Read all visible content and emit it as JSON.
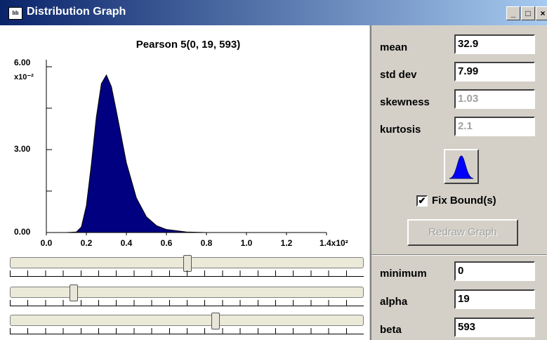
{
  "window": {
    "title": "Distribution Graph"
  },
  "chart_data": {
    "type": "area",
    "title": "Pearson 5(0, 19, 593)",
    "x": [
      0.1,
      0.15,
      0.175,
      0.2,
      0.225,
      0.25,
      0.275,
      0.3,
      0.325,
      0.35,
      0.4,
      0.45,
      0.5,
      0.55,
      0.6,
      0.7,
      0.8
    ],
    "values": [
      0,
      0.02,
      0.2,
      0.97,
      2.47,
      4.18,
      5.39,
      5.7,
      5.28,
      4.39,
      2.52,
      1.25,
      0.57,
      0.25,
      0.11,
      0.02,
      0
    ],
    "color": "#000080",
    "xlim": [
      0,
      1.4
    ],
    "xticks": [
      {
        "value": 0,
        "label": "0.0"
      },
      {
        "value": 0.2,
        "label": "0.2"
      },
      {
        "value": 0.4,
        "label": "0.4"
      },
      {
        "value": 0.6,
        "label": "0.6"
      },
      {
        "value": 0.8,
        "label": "0.8"
      },
      {
        "value": 1.0,
        "label": "1.0"
      },
      {
        "value": 1.2,
        "label": "1.2"
      },
      {
        "value": 1.4,
        "label": "1.4x10²"
      }
    ],
    "ylim": [
      0,
      6
    ],
    "yticks": [
      {
        "value": 0,
        "label": "0.00"
      },
      {
        "value": 3,
        "label": "3.00"
      },
      {
        "value": 6,
        "label": "6.00"
      }
    ],
    "yminor": [
      1.5,
      4.5
    ],
    "y_multiplier": "x10⁻²"
  },
  "stats": [
    {
      "label": "mean",
      "value": 32.9,
      "enabled": true
    },
    {
      "label": "std dev",
      "value": 7.99,
      "enabled": true
    },
    {
      "label": "skewness",
      "value": 1.03,
      "enabled": false
    },
    {
      "label": "kurtosis",
      "value": 2.1,
      "enabled": false
    }
  ],
  "fix_bounds": {
    "label": "Fix Bound(s)",
    "checked": true
  },
  "redraw_button": {
    "label": "Redraw Graph",
    "enabled": false
  },
  "parameters": [
    {
      "label": "minimum",
      "value": 0
    },
    {
      "label": "alpha",
      "value": 19
    },
    {
      "label": "beta",
      "value": 593
    }
  ]
}
